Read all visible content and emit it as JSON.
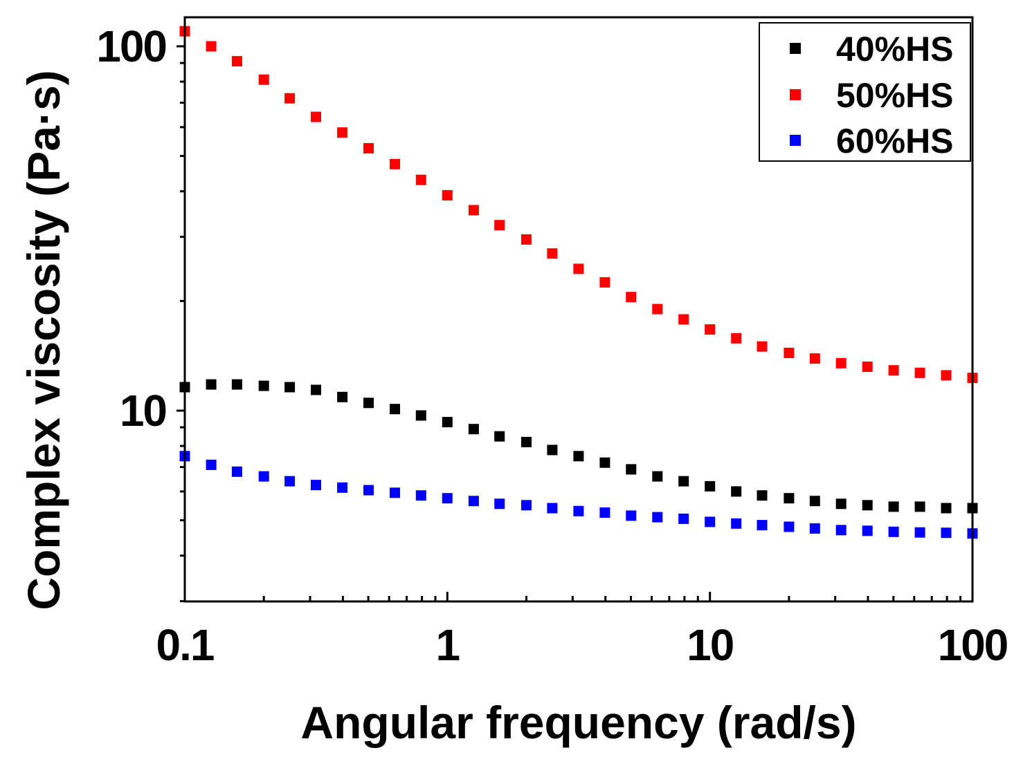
{
  "chart_data": {
    "type": "scatter",
    "title": "",
    "xlabel": "Angular frequency (rad/s)",
    "ylabel": "Complex viscosity (Pa·s)",
    "xscale": "log",
    "yscale": "log",
    "xlim": [
      0.1,
      100
    ],
    "ylim": [
      3,
      120
    ],
    "xticks": [
      {
        "value": 0.1,
        "label": "0.1"
      },
      {
        "value": 1,
        "label": "1"
      },
      {
        "value": 10,
        "label": "10"
      },
      {
        "value": 100,
        "label": "100"
      }
    ],
    "yticks": [
      {
        "value": 10,
        "label": "10"
      },
      {
        "value": 100,
        "label": "100"
      }
    ],
    "legend_position": "top-right",
    "x": [
      0.1,
      0.126,
      0.158,
      0.2,
      0.251,
      0.316,
      0.398,
      0.501,
      0.631,
      0.794,
      1,
      1.26,
      1.58,
      2,
      2.51,
      3.16,
      3.98,
      5.01,
      6.31,
      7.94,
      10,
      12.6,
      15.8,
      20,
      25.1,
      31.6,
      39.8,
      50.1,
      63.1,
      79.4,
      100
    ],
    "series": [
      {
        "name": "40%HS",
        "color": "#000000",
        "values": [
          11.6,
          11.8,
          11.8,
          11.7,
          11.6,
          11.4,
          10.9,
          10.5,
          10.1,
          9.7,
          9.3,
          8.9,
          8.5,
          8.2,
          7.8,
          7.5,
          7.2,
          6.9,
          6.6,
          6.4,
          6.2,
          6.0,
          5.85,
          5.75,
          5.65,
          5.55,
          5.5,
          5.45,
          5.45,
          5.4,
          5.4
        ]
      },
      {
        "name": "50%HS",
        "color": "#ff0000",
        "values": [
          110,
          100,
          91,
          81,
          72,
          64,
          58,
          52.5,
          47.5,
          43,
          39,
          35.5,
          32.3,
          29.5,
          27,
          24.5,
          22.5,
          20.5,
          19,
          17.8,
          16.7,
          15.8,
          15.0,
          14.4,
          13.9,
          13.5,
          13.2,
          12.9,
          12.7,
          12.5,
          12.3
        ]
      },
      {
        "name": "60%HS",
        "color": "#0000ff",
        "values": [
          7.5,
          7.1,
          6.8,
          6.6,
          6.4,
          6.25,
          6.15,
          6.05,
          5.95,
          5.85,
          5.75,
          5.65,
          5.55,
          5.5,
          5.4,
          5.3,
          5.25,
          5.15,
          5.1,
          5.05,
          4.95,
          4.9,
          4.85,
          4.8,
          4.75,
          4.7,
          4.68,
          4.65,
          4.63,
          4.62,
          4.6
        ]
      }
    ]
  }
}
